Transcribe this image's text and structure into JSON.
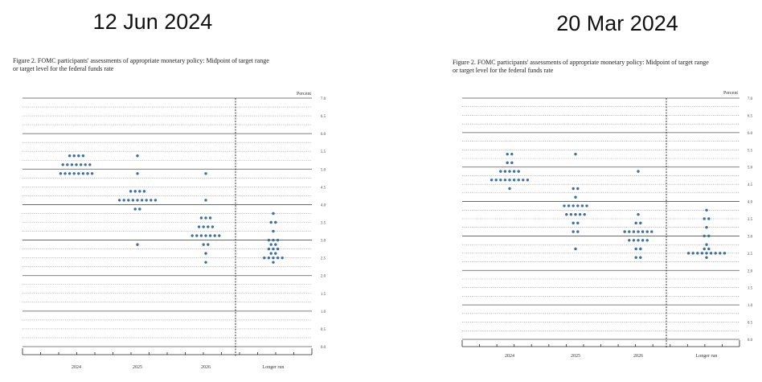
{
  "charts": [
    {
      "heading": "12 Jun 2024",
      "caption_line1": "Figure 2.  FOMC participants' assessments of appropriate monetary policy:  Midpoint of target range",
      "caption_line2": "or target level for the federal funds rate"
    },
    {
      "heading": "20 Mar 2024",
      "caption_line1": "Figure 2.  FOMC participants' assessments of appropriate monetary policy:  Midpoint of target range",
      "caption_line2": "or target level for the federal funds rate"
    }
  ],
  "chart_data": [
    {
      "type": "scatter",
      "title": "12 Jun 2024",
      "ylabel": "Percent",
      "ylim": [
        0,
        7.0
      ],
      "yticks": [
        "0.0",
        "0.5",
        "1.0",
        "1.5",
        "2.0",
        "2.5",
        "3.0",
        "3.5",
        "4.0",
        "4.5",
        "5.0",
        "5.5",
        "6.0",
        "6.5",
        "7.0"
      ],
      "categories": [
        "2024",
        "2025",
        "2026",
        "Longer run"
      ],
      "dot_color": "#3a6fa8",
      "dots": [
        {
          "category": "2024",
          "counts": {
            "5.375": 4,
            "5.125": 7,
            "4.875": 8
          }
        },
        {
          "category": "2025",
          "counts": {
            "5.375": 1,
            "4.875": 1,
            "4.375": 4,
            "4.125": 9,
            "3.875": 2,
            "2.875": 1
          }
        },
        {
          "category": "2026",
          "counts": {
            "4.875": 1,
            "4.125": 1,
            "3.625": 3,
            "3.375": 4,
            "3.125": 7,
            "2.875": 2,
            "2.625": 1,
            "2.375": 1
          }
        },
        {
          "category": "Longer run",
          "counts": {
            "3.75": 1,
            "3.5": 2,
            "3.25": 1,
            "3.0": 3,
            "2.875": 2,
            "2.75": 3,
            "2.625": 2,
            "2.5": 5,
            "2.375": 1
          }
        }
      ]
    },
    {
      "type": "scatter",
      "title": "20 Mar 2024",
      "ylabel": "Percent",
      "ylim": [
        0,
        7.0
      ],
      "yticks": [
        "0.0",
        "0.5",
        "1.0",
        "1.5",
        "2.0",
        "2.5",
        "3.0",
        "3.5",
        "4.0",
        "4.5",
        "5.0",
        "5.5",
        "6.0",
        "6.5",
        "7.0"
      ],
      "categories": [
        "2024",
        "2025",
        "2026",
        "Longer run"
      ],
      "dot_color": "#3a6fa8",
      "dots": [
        {
          "category": "2024",
          "counts": {
            "5.375": 2,
            "5.125": 2,
            "4.875": 5,
            "4.625": 9,
            "4.375": 1
          }
        },
        {
          "category": "2025",
          "counts": {
            "5.375": 1,
            "4.375": 2,
            "4.125": 1,
            "3.875": 6,
            "3.625": 5,
            "3.375": 2,
            "3.125": 2,
            "2.625": 1
          }
        },
        {
          "category": "2026",
          "counts": {
            "4.875": 1,
            "3.625": 1,
            "3.375": 2,
            "3.125": 7,
            "2.875": 5,
            "2.625": 2,
            "2.375": 2
          }
        },
        {
          "category": "Longer run",
          "counts": {
            "3.75": 1,
            "3.5": 2,
            "3.25": 1,
            "3.0": 2,
            "2.75": 1,
            "2.625": 2,
            "2.5": 9,
            "2.375": 1
          }
        }
      ]
    }
  ]
}
